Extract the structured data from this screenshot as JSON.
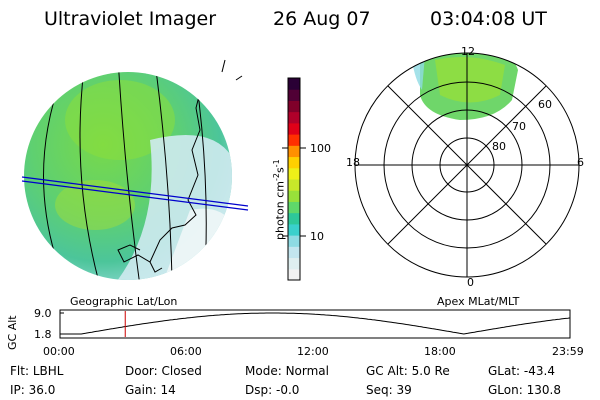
{
  "header": {
    "instrument": "Ultraviolet Imager",
    "date": "26 Aug 07",
    "time": "03:04:08 UT"
  },
  "colorbar": {
    "unit_main": "photon cm",
    "unit_sup1": "-2",
    "unit_mid": "s",
    "unit_sup2": "-1",
    "ticks": [
      "100",
      "10"
    ],
    "colors": [
      "#f2f2f2",
      "#dfeff0",
      "#c3e6ef",
      "#8edbe3",
      "#3ad0cc",
      "#2ec89a",
      "#5fd86a",
      "#98e03a",
      "#c8e82a",
      "#eef018",
      "#ffd000",
      "#ff9000",
      "#ff3000",
      "#e00018",
      "#b0002a",
      "#80002a",
      "#500035",
      "#2a0035"
    ]
  },
  "left_panel": {
    "label": "Geographic Lat/Lon"
  },
  "right_panel": {
    "label": "Apex  MLat/MLT",
    "mlt_labels": {
      "top": "12",
      "left": "18",
      "right": "6",
      "bottom": "0"
    },
    "lat_labels": [
      "60",
      "70",
      "80"
    ]
  },
  "altitude_plot": {
    "axis_label": "GC Alt",
    "y_ticks": [
      "9.0",
      "1.8"
    ],
    "x_ticks": [
      "00:00",
      "06:00",
      "12:00",
      "18:00",
      "23:59"
    ],
    "marker_time_hours": 3.07
  },
  "info": {
    "filter_label": "Flt:",
    "filter_value": "LBHL",
    "ip_label": "IP:",
    "ip_value": "36.0",
    "door_label": "Door:",
    "door_value": "Closed",
    "gain_label": "Gain:",
    "gain_value": "14",
    "mode_label": "Mode:",
    "mode_value": "Normal",
    "dsp_label": "Dsp:",
    "dsp_value": "-0.0",
    "gcalt_label": "GC Alt:",
    "gcalt_value": "5.0 Re",
    "seq_label": "Seq:",
    "seq_value": "39",
    "glat_label": "GLat:",
    "glat_value": "-43.4",
    "glon_label": "GLon:",
    "glon_value": "130.8"
  }
}
